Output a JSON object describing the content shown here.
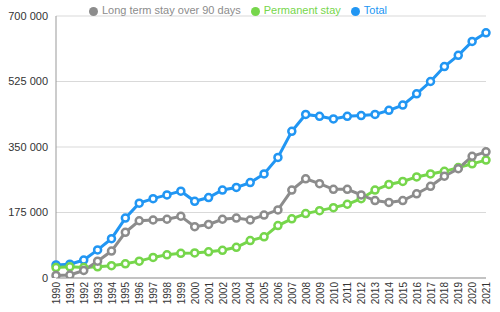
{
  "chart_data": {
    "type": "line",
    "categories": [
      "1990",
      "1991",
      "1992",
      "1993",
      "1994",
      "1995",
      "1996",
      "1997",
      "1998",
      "1999",
      "2000",
      "2001",
      "2002",
      "2003",
      "2004",
      "2005",
      "2006",
      "2007",
      "2008",
      "2009",
      "2010",
      "2011",
      "2012",
      "2013",
      "2014",
      "2015",
      "2016",
      "2017",
      "2018",
      "2019",
      "2020",
      "2021"
    ],
    "series": [
      {
        "name": "Total",
        "color": "#2196f3",
        "values": [
          35000,
          37000,
          48000,
          75000,
          105000,
          160000,
          200000,
          212000,
          222000,
          232000,
          205000,
          215000,
          235000,
          242000,
          255000,
          278000,
          322000,
          392000,
          437000,
          432000,
          425000,
          432000,
          434000,
          437000,
          448000,
          462000,
          492000,
          525000,
          565000,
          595000,
          632000,
          655000
        ]
      },
      {
        "name": "Permanent stay",
        "color": "#76d64b",
        "values": [
          28000,
          30000,
          28000,
          30000,
          33000,
          38000,
          45000,
          55000,
          62000,
          66000,
          67000,
          70000,
          74000,
          82000,
          100000,
          110000,
          140000,
          158000,
          172000,
          180000,
          188000,
          197000,
          212000,
          235000,
          250000,
          258000,
          270000,
          278000,
          285000,
          295000,
          305000,
          315000
        ]
      },
      {
        "name": "Long term stay over 90 days",
        "color": "#8c8c8c",
        "values": [
          7000,
          8000,
          20000,
          45000,
          72000,
          122000,
          153000,
          155000,
          157000,
          165000,
          137000,
          143000,
          157000,
          160000,
          155000,
          168000,
          182000,
          235000,
          265000,
          252000,
          237000,
          237000,
          222000,
          207000,
          202000,
          207000,
          225000,
          245000,
          272000,
          292000,
          325000,
          337000
        ]
      }
    ],
    "ylim": [
      0,
      700000
    ],
    "yticks": [
      0,
      {
        "value": 175000,
        "label": "175 000"
      },
      {
        "value": 350000,
        "label": "350 000"
      },
      {
        "value": 525000,
        "label": "525 000"
      },
      {
        "value": 700000,
        "label": "700 000"
      }
    ],
    "grid": true,
    "legend": "top",
    "marker": "circle"
  }
}
